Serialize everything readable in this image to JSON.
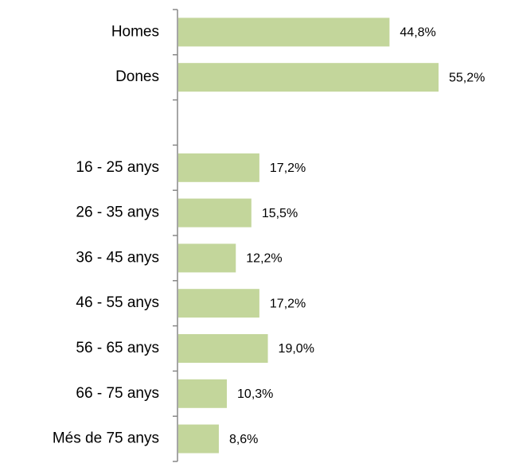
{
  "chart_data": {
    "type": "bar",
    "orientation": "horizontal",
    "categories": [
      "Homes",
      "Dones",
      null,
      "16 - 25 anys",
      "26 - 35 anys",
      "36 - 45 anys",
      "46 - 55 anys",
      "56 - 65 anys",
      "66 - 75 anys",
      "Més de 75 anys"
    ],
    "values": [
      44.8,
      55.2,
      null,
      17.2,
      15.5,
      12.2,
      17.2,
      19.0,
      10.3,
      8.6
    ],
    "value_labels": [
      "44,8%",
      "55,2%",
      null,
      "17,2%",
      "15,5%",
      "12,2%",
      "17,2%",
      "19,0%",
      "10,3%",
      "8,6%"
    ],
    "color": "#c3d69b"
  }
}
